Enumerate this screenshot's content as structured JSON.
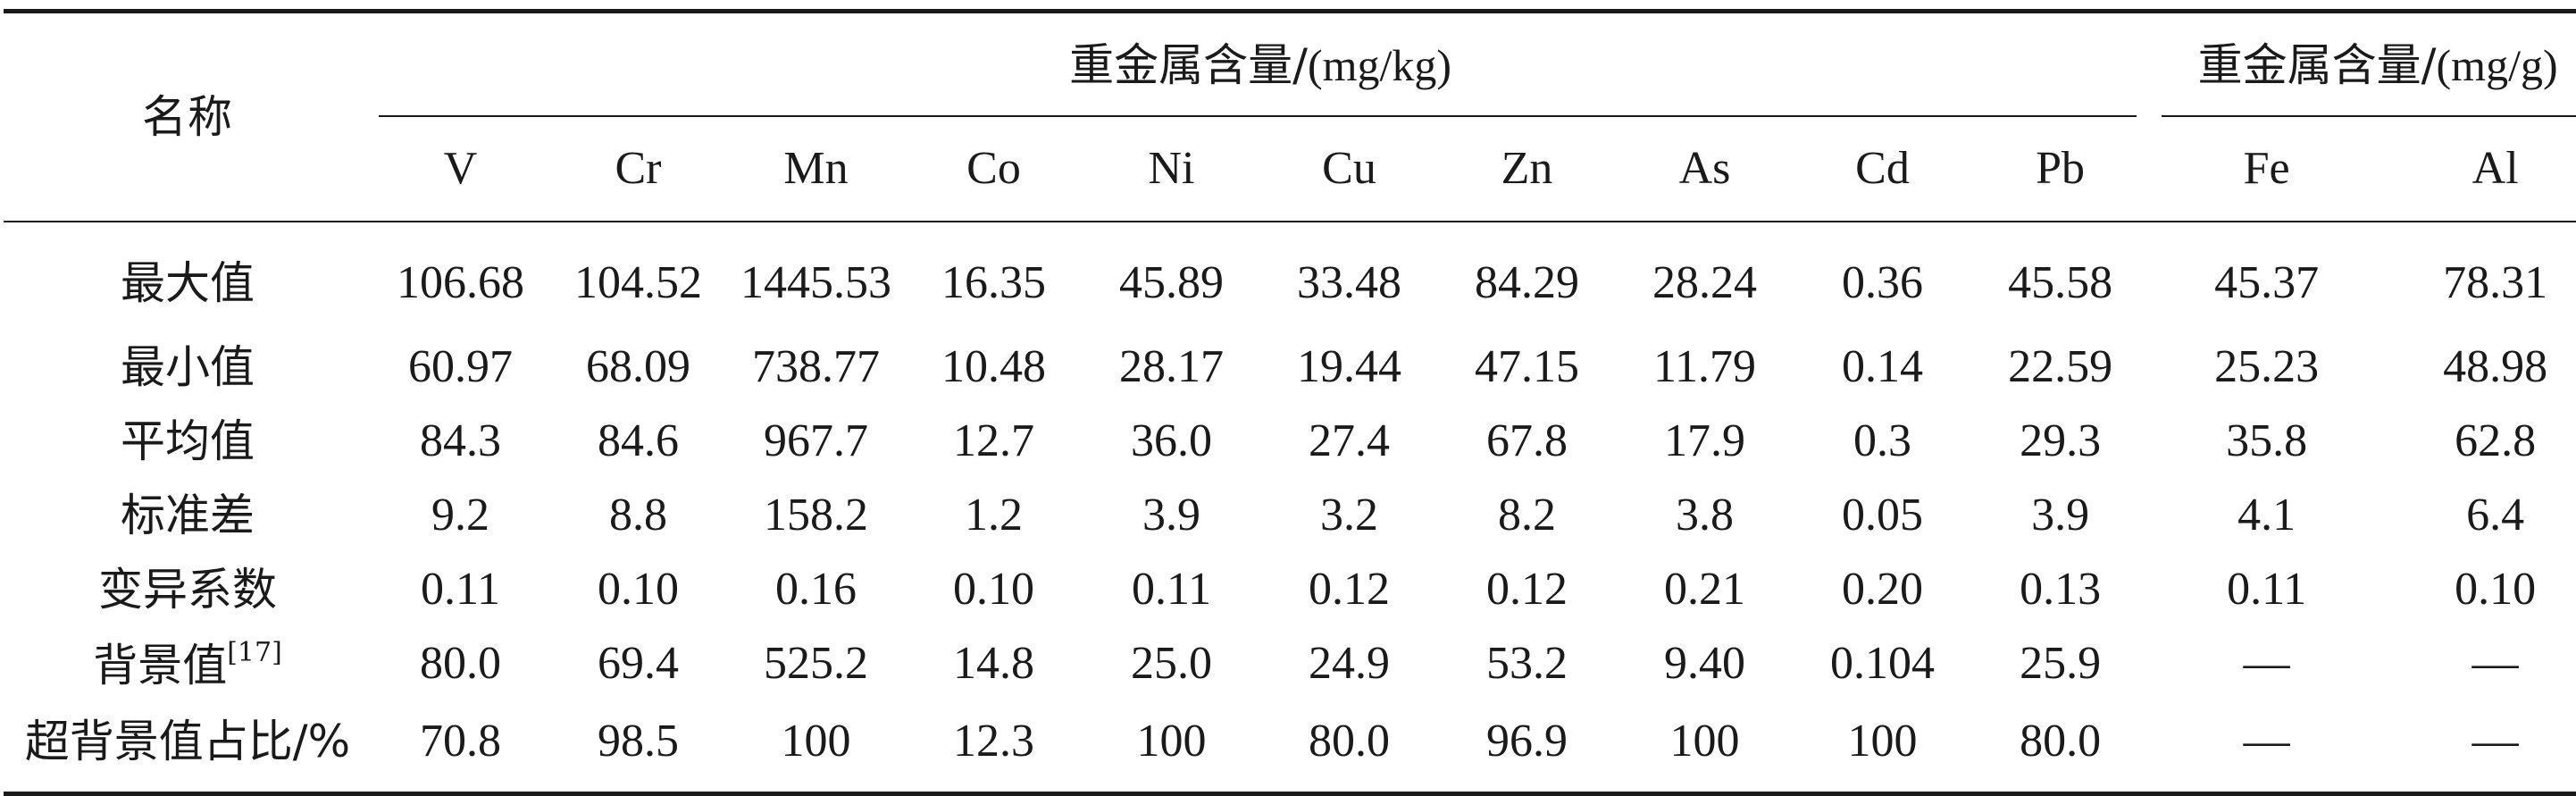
{
  "table": {
    "name_header": "名称",
    "group_ppm": {
      "title": "重金属含量/",
      "unit": "(mg/kg)"
    },
    "group_pct": {
      "title": "重金属含量/",
      "unit": "(mg/g)"
    },
    "columns": [
      "V",
      "Cr",
      "Mn",
      "Co",
      "Ni",
      "Cu",
      "Zn",
      "As",
      "Cd",
      "Pb",
      "Fe",
      "Al"
    ],
    "rows": [
      {
        "label": "最大值",
        "citation": "",
        "values": [
          "106.68",
          "104.52",
          "1445.53",
          "16.35",
          "45.89",
          "33.48",
          "84.29",
          "28.24",
          "0.36",
          "45.58",
          "45.37",
          "78.31"
        ]
      },
      {
        "label": "最小值",
        "citation": "",
        "values": [
          "60.97",
          "68.09",
          "738.77",
          "10.48",
          "28.17",
          "19.44",
          "47.15",
          "11.79",
          "0.14",
          "22.59",
          "25.23",
          "48.98"
        ]
      },
      {
        "label": "平均值",
        "citation": "",
        "values": [
          "84.3",
          "84.6",
          "967.7",
          "12.7",
          "36.0",
          "27.4",
          "67.8",
          "17.9",
          "0.3",
          "29.3",
          "35.8",
          "62.8"
        ]
      },
      {
        "label": "标准差",
        "citation": "",
        "values": [
          "9.2",
          "8.8",
          "158.2",
          "1.2",
          "3.9",
          "3.2",
          "8.2",
          "3.8",
          "0.05",
          "3.9",
          "4.1",
          "6.4"
        ]
      },
      {
        "label": "变异系数",
        "citation": "",
        "values": [
          "0.11",
          "0.10",
          "0.16",
          "0.10",
          "0.11",
          "0.12",
          "0.12",
          "0.21",
          "0.20",
          "0.13",
          "0.11",
          "0.10"
        ]
      },
      {
        "label": "背景值",
        "citation": "[17]",
        "values": [
          "80.0",
          "69.4",
          "525.2",
          "14.8",
          "25.0",
          "24.9",
          "53.2",
          "9.40",
          "0.104",
          "25.9",
          "—",
          "—"
        ]
      },
      {
        "label": "超背景值占比/%",
        "citation": "",
        "values": [
          "70.8",
          "98.5",
          "100",
          "12.3",
          "100",
          "80.0",
          "96.9",
          "100",
          "100",
          "80.0",
          "—",
          "—"
        ]
      }
    ]
  }
}
